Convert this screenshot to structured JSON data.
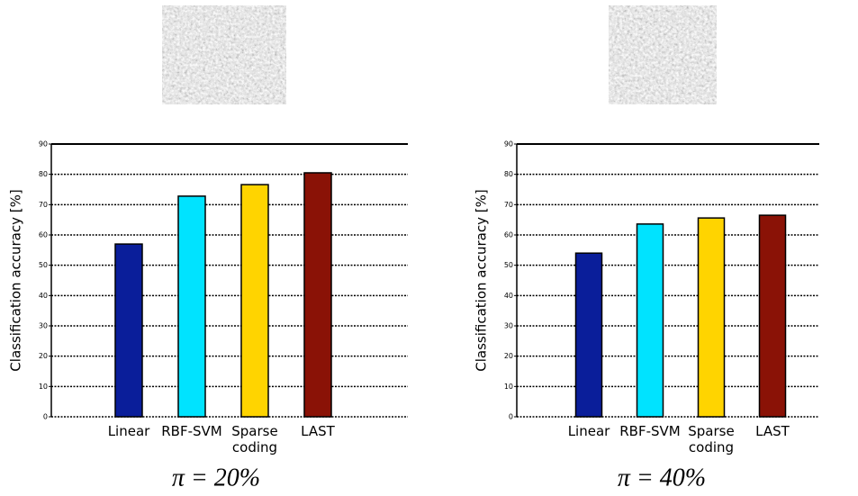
{
  "chart_data": [
    {
      "type": "bar",
      "ylabel": "Classification accuracy [%]",
      "categories": [
        "Linear",
        "RBF-SVM",
        "Sparse coding",
        "LAST"
      ],
      "values": [
        57,
        72.8,
        76.6,
        80.5
      ],
      "colors": [
        "#0a1e9a",
        "#00e3ff",
        "#ffd400",
        "#8a1206"
      ],
      "ylim": [
        0,
        90
      ],
      "yticks": [
        0,
        10,
        20,
        30,
        40,
        50,
        60,
        70,
        80,
        90
      ],
      "grid": true,
      "caption": "π = 20%"
    },
    {
      "type": "bar",
      "ylabel": "Classification accuracy [%]",
      "categories": [
        "Linear",
        "RBF-SVM",
        "Sparse coding",
        "LAST"
      ],
      "values": [
        54,
        63.6,
        65.6,
        66.5
      ],
      "colors": [
        "#0a1e9a",
        "#00e3ff",
        "#ffd400",
        "#8a1206"
      ],
      "ylim": [
        0,
        90
      ],
      "yticks": [
        0,
        10,
        20,
        30,
        40,
        50,
        60,
        70,
        80,
        90
      ],
      "grid": true,
      "caption": "π = 40%"
    }
  ]
}
